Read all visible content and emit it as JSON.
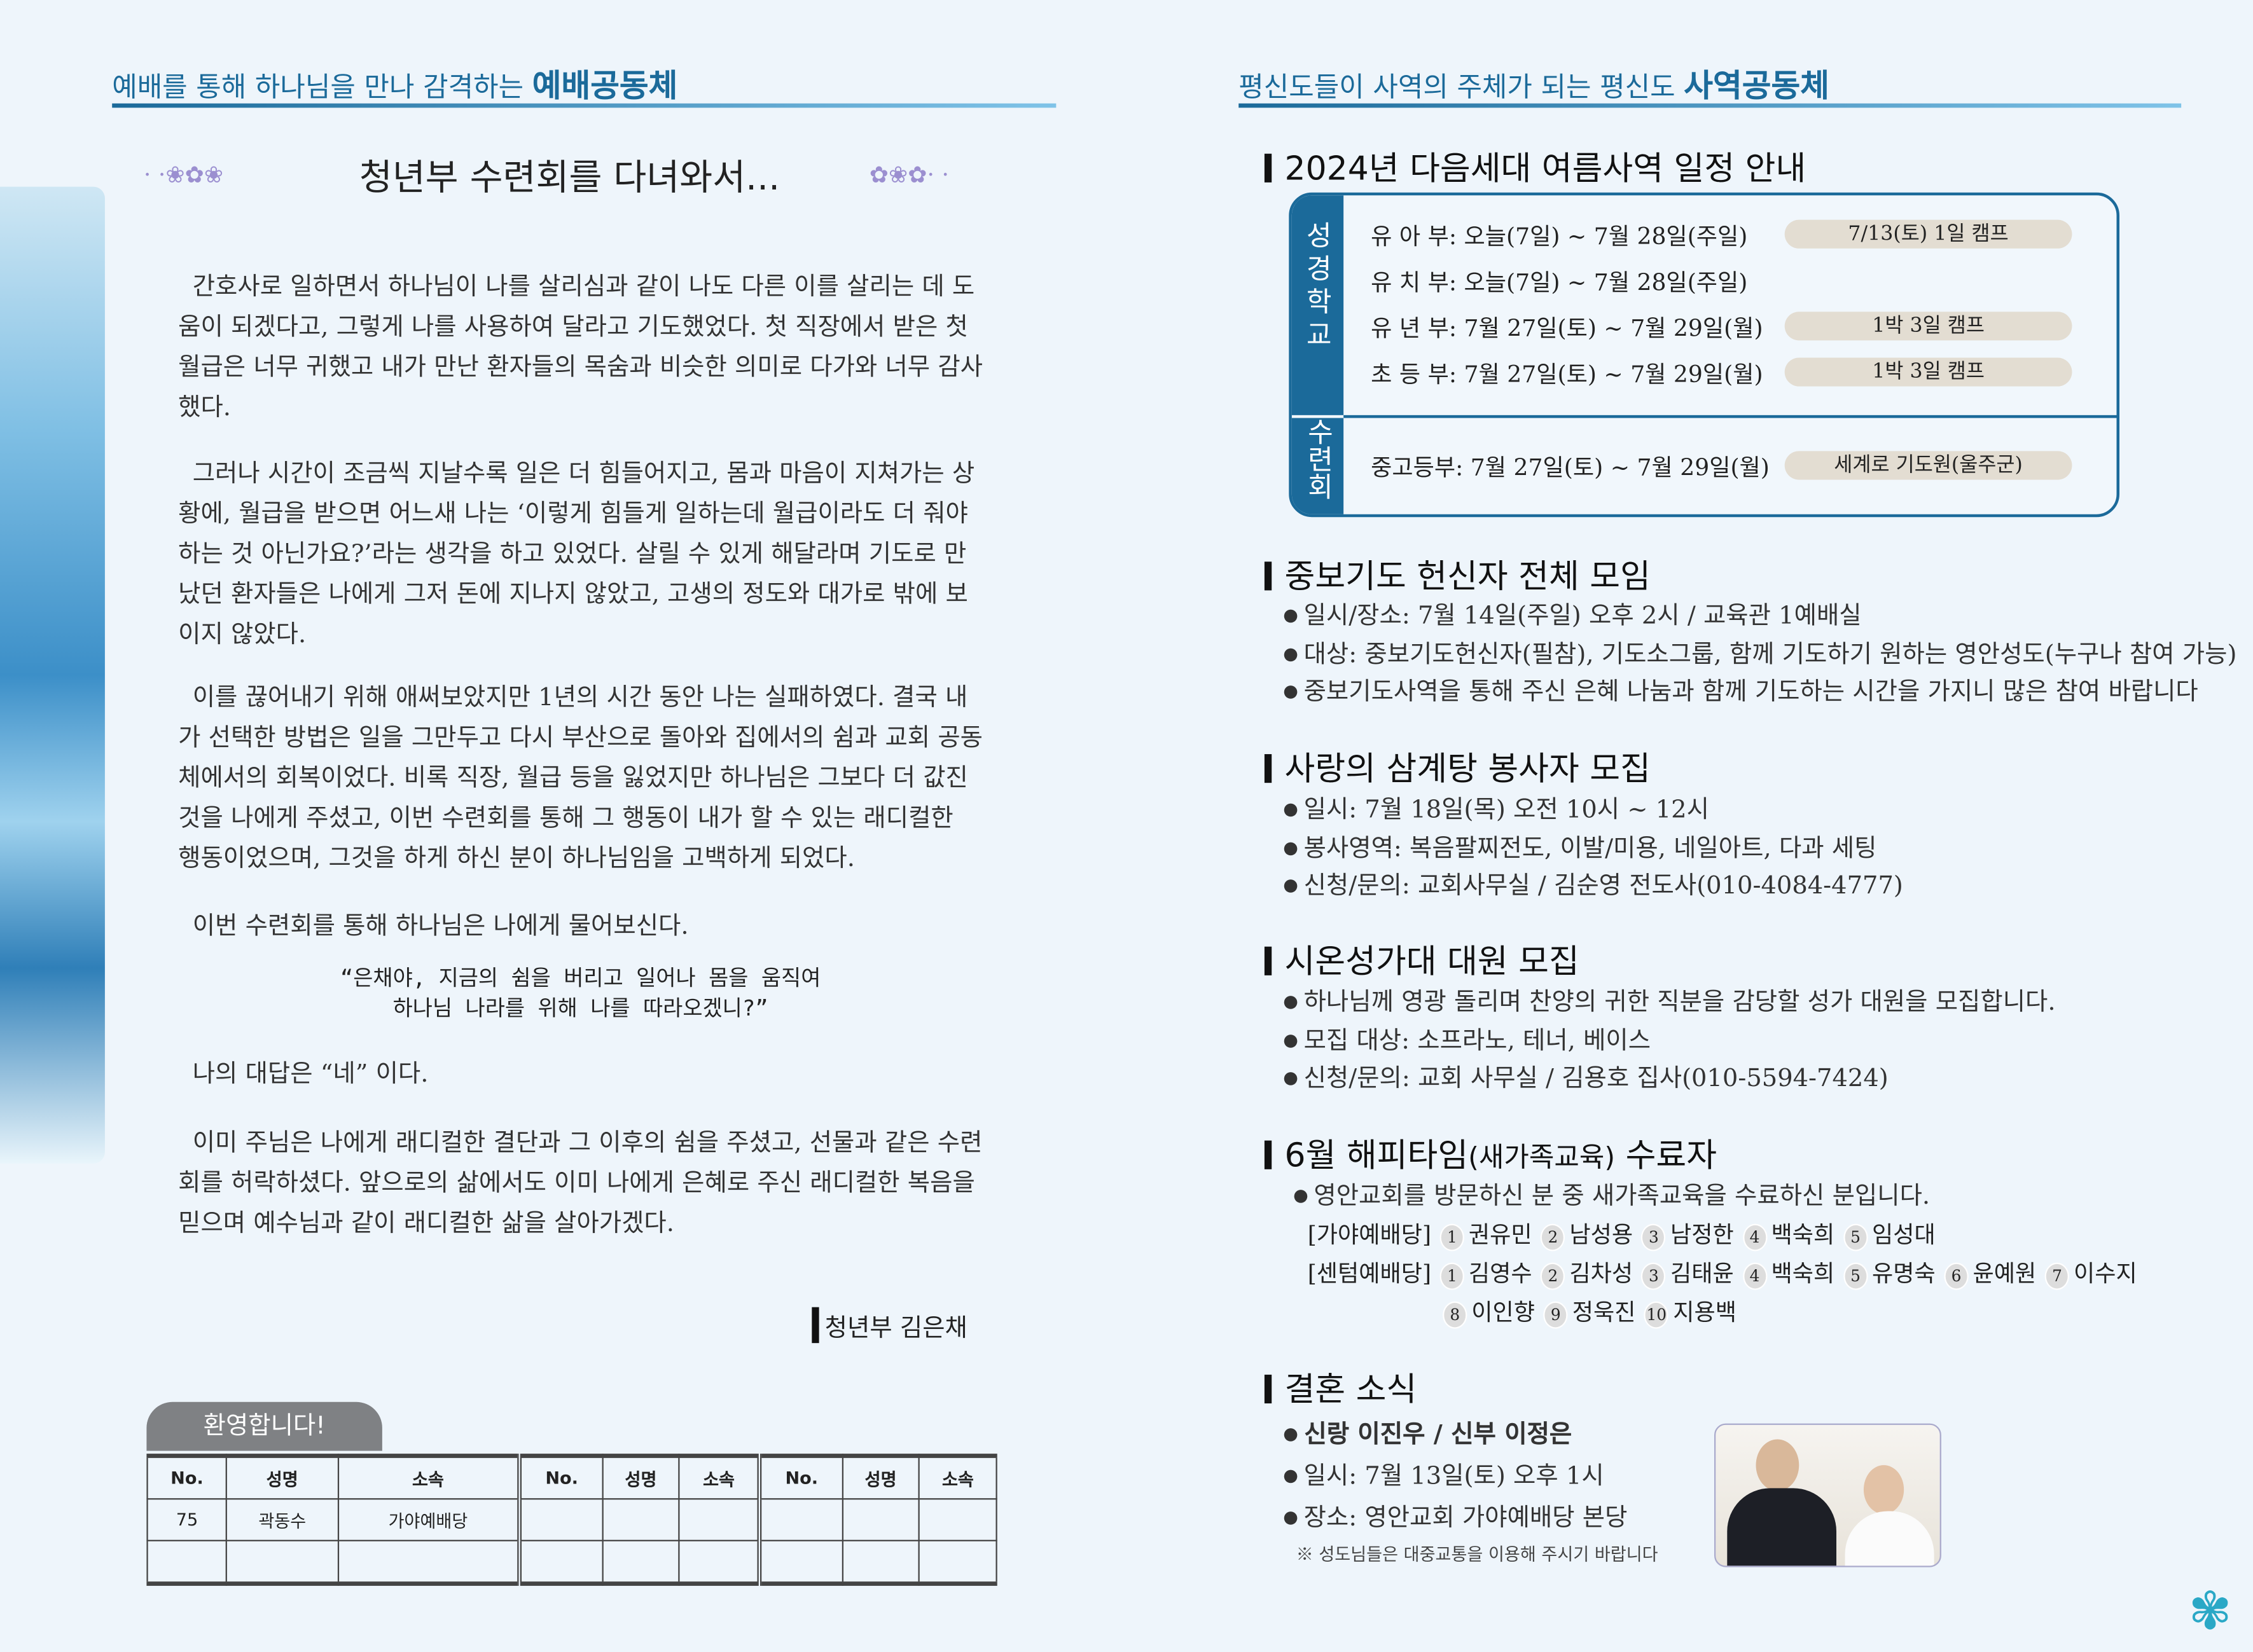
{
  "left": {
    "header_prefix": "예배를 통해 하나님을 만나 감격하는",
    "header_bold": "예배공동체",
    "title": "청년부 수련회를 다녀와서...",
    "paragraphs": [
      "간호사로 일하면서 하나님이 나를 살리심과 같이 나도 다른 이를 살리는 데 도움이 되겠다고, 그렇게 나를 사용하여 달라고 기도했었다. 첫 직장에서 받은 첫 월급은 너무 귀했고 내가 만난 환자들의 목숨과 비슷한 의미로 다가와 너무 감사했다.",
      "그러나 시간이 조금씩 지날수록 일은 더 힘들어지고, 몸과 마음이 지쳐가는 상황에, 월급을 받으면 어느새 나는 ‘이렇게 힘들게 일하는데 월급이라도 더 줘야 하는 것 아닌가요?’라는 생각을 하고 있었다. 살릴 수 있게 해달라며 기도로 만났던 환자들은 나에게 그저 돈에 지나지 않았고, 고생의 정도와 대가로 밖에 보이지 않았다.",
      "이를 끊어내기 위해 애써보았지만 1년의 시간 동안 나는 실패하였다. 결국 내가 선택한 방법은 일을 그만두고 다시 부산으로 돌아와 집에서의 쉼과 교회 공동체에서의 회복이었다. 비록 직장, 월급 등을 잃었지만 하나님은 그보다 더 값진 것을 나에게 주셨고, 이번 수련회를 통해 그 행동이 내가 할 수 있는 래디컬한 행동이었으며, 그것을 하게 하신 분이 하나님임을 고백하게 되었다.",
      "이번 수련회를 통해 하나님은 나에게 물어보신다."
    ],
    "quote_line1": "“은채야, 지금의 쉼을 버리고 일어나 몸을 움직여",
    "quote_line2": "하나님 나라를 위해 나를 따라오겠니?”",
    "answer": "나의 대답은 “네” 이다.",
    "closing": "이미 주님은 나에게 래디컬한 결단과 그 이후의 쉼을 주셨고, 선물과 같은 수련회를 허락하셨다. 앞으로의 삶에서도 이미 나에게 은혜로 주신 래디컬한 복음을 믿으며 예수님과 같이 래디컬한 삶을 살아가겠다.",
    "author": "청년부 김은채",
    "welcome": {
      "tab": "환영합니다!",
      "headers": [
        "No.",
        "성명",
        "소속",
        "No.",
        "성명",
        "소속",
        "No.",
        "성명",
        "소속"
      ],
      "rows": [
        [
          "75",
          "곽동수",
          "가야예배당",
          "",
          "",
          "",
          "",
          "",
          ""
        ],
        [
          "",
          "",
          "",
          "",
          "",
          "",
          "",
          "",
          ""
        ]
      ]
    }
  },
  "right": {
    "header_prefix": "평신도들이 사역의 주체가 되는 평신도",
    "header_bold": "사역공동체",
    "summer": {
      "title": "2024년 다음세대 여름사역 일정 안내",
      "group1": "성경학교",
      "group2": "수련회",
      "rows": [
        {
          "text": "유 아 부: 오늘(7일) ~ 7월 28일(주일)",
          "note": "7/13(토)  1일 캠프"
        },
        {
          "text": "유 치 부: 오늘(7일) ~ 7월 28일(주일)",
          "note": ""
        },
        {
          "text": "유 년 부: 7월 27일(토) ~ 7월 29일(월)",
          "note": "1박 3일 캠프"
        },
        {
          "text": "초 등 부: 7월 27일(토) ~ 7월 29일(월)",
          "note": "1박 3일 캠프"
        },
        {
          "text": "중고등부: 7월 27일(토) ~ 7월 29일(월)",
          "note": "세계로 기도원(울주군)"
        }
      ]
    },
    "prayer": {
      "title": "중보기도 헌신자 전체 모임",
      "items": [
        "일시/장소: 7월 14일(주일) 오후 2시 / 교육관 1예배실",
        "대상: 중보기도헌신자(필참), 기도소그룹, 함께 기도하기 원하는 영안성도(누구나 참여 가능)",
        "중보기도사역을 통해 주신 은혜 나눔과 함께 기도하는 시간을 가지니 많은 참여 바랍니다"
      ]
    },
    "samgyetang": {
      "title": "사랑의 삼계탕 봉사자 모집",
      "items": [
        "일시: 7월 18일(목) 오전 10시 ~ 12시",
        "봉사영역: 복음팔찌전도, 이발/미용, 네일아트, 다과 세팅",
        "신청/문의: 교회사무실 / 김순영 전도사(010-4084-4777)"
      ]
    },
    "choir": {
      "title": "시온성가대 대원 모집",
      "items": [
        "하나님께 영광 돌리며 찬양의 귀한 직분을 감당할 성가 대원을 모집합니다.",
        "모집 대상: 소프라노, 테너, 베이스",
        "신청/문의: 교회 사무실 / 김용호 집사(010-5594-7424)"
      ]
    },
    "happy": {
      "title": "6월 해피타임",
      "title_small": "(새가족교육)",
      "title_end": " 수료자",
      "intro": "영안교회를 방문하신 분 중 새가족교육을 수료하신 분입니다.",
      "gaya_label": "[가야예배당]",
      "gaya": [
        "권유민",
        "남성용",
        "남정한",
        "백숙희",
        "임성대"
      ],
      "center_label": "[센텀예배당]",
      "center": [
        "김영수",
        "김차성",
        "김태윤",
        "백숙희",
        "유명숙",
        "윤예원",
        "이수지",
        "이인향",
        "정욱진",
        "지용백"
      ]
    },
    "wedding": {
      "title": "결혼 소식",
      "couple": "신랑 이진우 / 신부 이정은",
      "time": "일시: 7월 13일(토) 오후 1시",
      "place": "장소: 영안교회 가야예배당 본당",
      "note": "※ 성도님들은 대중교통을 이용해 주시기 바랍니다"
    }
  },
  "colors": {
    "accent": "#1b6a9a",
    "pill": "#e3ddd2",
    "background": "#eef5fb"
  }
}
